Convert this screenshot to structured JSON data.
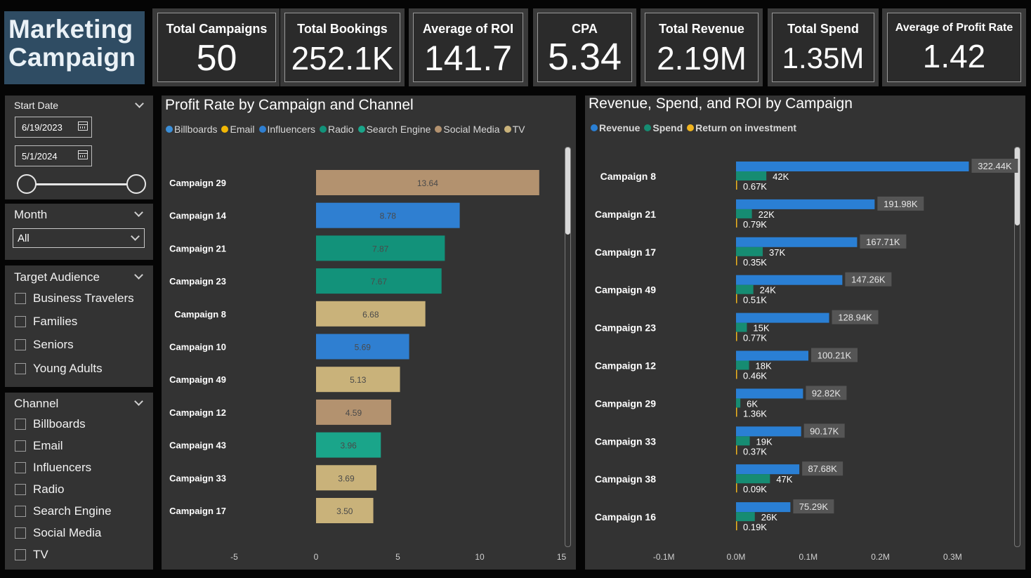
{
  "title": {
    "line1": "Marketing",
    "line2": "Campaign"
  },
  "kpis": [
    {
      "label": "Total Campaigns",
      "value": "50"
    },
    {
      "label": "Total Bookings",
      "value": "252.1K"
    },
    {
      "label": "Average of ROI",
      "value": "141.7"
    },
    {
      "label": "CPA",
      "value": "5.34"
    },
    {
      "label": "Total Revenue",
      "value": "2.19M"
    },
    {
      "label": "Total Spend",
      "value": "1.35M"
    },
    {
      "label": "Average of Profit Rate",
      "value": "1.42"
    }
  ],
  "filters": {
    "start_date": {
      "title": "Start Date",
      "from": "6/19/2023",
      "to": "5/1/2024"
    },
    "month": {
      "title": "Month",
      "selected": "All"
    },
    "audience": {
      "title": "Target Audience",
      "options": [
        "Business Travelers",
        "Families",
        "Seniors",
        "Young Adults"
      ]
    },
    "channel": {
      "title": "Channel",
      "options": [
        "Billboards",
        "Email",
        "Influencers",
        "Radio",
        "Search Engine",
        "Social Media",
        "TV"
      ]
    }
  },
  "colors": {
    "Billboards": "#3b8fd9",
    "Email": "#f2b705",
    "Influencers": "#2f7fd1",
    "Radio": "#12927a",
    "Search Engine": "#1aa58a",
    "Social Media": "#b3926f",
    "TV": "#c9b27a",
    "revenue": "#2a7fd4",
    "spend": "#168c72",
    "roi": "#f0b41f"
  },
  "chart_data": [
    {
      "type": "bar",
      "orientation": "horizontal",
      "title": "Profit Rate by Campaign and Channel",
      "legend": [
        "Billboards",
        "Email",
        "Influencers",
        "Radio",
        "Search Engine",
        "Social Media",
        "TV"
      ],
      "categories": [
        "Campaign 29",
        "Campaign 14",
        "Campaign 21",
        "Campaign 23",
        "Campaign 8",
        "Campaign 10",
        "Campaign 49",
        "Campaign 12",
        "Campaign 43",
        "Campaign 33",
        "Campaign 17"
      ],
      "values": [
        13.64,
        8.78,
        7.87,
        7.67,
        6.68,
        5.69,
        5.13,
        4.59,
        3.96,
        3.69,
        3.5
      ],
      "labels": [
        "13.64",
        "8.78",
        "7.87",
        "7.67",
        "6.68",
        "5.69",
        "5.13",
        "4.59",
        "3.96",
        "3.69",
        "3.50"
      ],
      "channels": [
        "Social Media",
        "Influencers",
        "Radio",
        "Radio",
        "TV",
        "Influencers",
        "TV",
        "Social Media",
        "Search Engine",
        "TV",
        "TV"
      ],
      "xlim": [
        -5,
        15
      ],
      "xticks": [
        "-5",
        "0",
        "5",
        "10",
        "15"
      ]
    },
    {
      "type": "bar",
      "orientation": "horizontal",
      "title": "Revenue, Spend, and ROI by Campaign",
      "legend": [
        "Revenue",
        "Spend",
        "Return on investment"
      ],
      "categories": [
        "Campaign 8",
        "Campaign 21",
        "Campaign 17",
        "Campaign 49",
        "Campaign 23",
        "Campaign 12",
        "Campaign 29",
        "Campaign 33",
        "Campaign 38",
        "Campaign 16"
      ],
      "series": [
        {
          "name": "Revenue",
          "values": [
            322440,
            191980,
            167710,
            147260,
            128940,
            100210,
            92820,
            90170,
            87680,
            75290
          ],
          "labels": [
            "322.44K",
            "191.98K",
            "167.71K",
            "147.26K",
            "128.94K",
            "100.21K",
            "92.82K",
            "90.17K",
            "87.68K",
            "75.29K"
          ]
        },
        {
          "name": "Spend",
          "values": [
            42000,
            22000,
            37000,
            24000,
            15000,
            18000,
            6000,
            19000,
            47000,
            26000
          ],
          "labels": [
            "42K",
            "22K",
            "37K",
            "24K",
            "15K",
            "18K",
            "6K",
            "19K",
            "47K",
            "26K"
          ]
        },
        {
          "name": "Return on investment",
          "values": [
            670,
            790,
            350,
            510,
            770,
            460,
            1360,
            370,
            90,
            190
          ],
          "labels": [
            "0.67K",
            "0.79K",
            "0.35K",
            "0.51K",
            "0.77K",
            "0.46K",
            "1.36K",
            "0.37K",
            "0.09K",
            "0.19K"
          ]
        }
      ],
      "xlim": [
        -0.1,
        0.3
      ],
      "xticks": [
        "-0.1M",
        "0.0M",
        "0.1M",
        "0.2M",
        "0.3M"
      ]
    }
  ]
}
